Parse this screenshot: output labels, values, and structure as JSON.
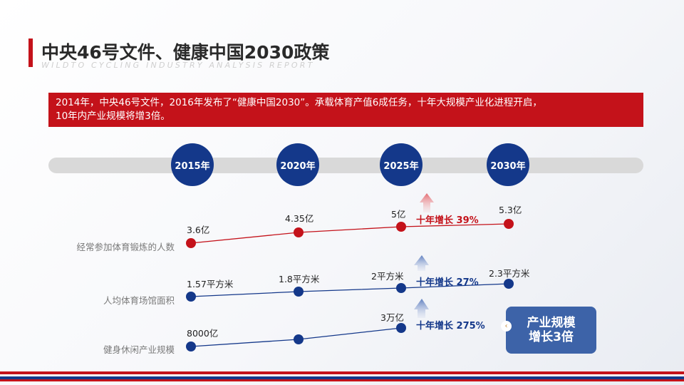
{
  "header": {
    "title": "中央46号文件、健康中国2030政策",
    "subtitle": "WILDTO CYCLING INDUSTRY ANALYSIS REPORT"
  },
  "banner": {
    "line1": "2014年，中央46号文件，2016年发布了“健康中国2030”。承载体育产值6成任务，十年大规模产业化进程开启，",
    "line2": "10年内产业规模将增3倍。"
  },
  "timeline": {
    "years": [
      "2015年",
      "2020年",
      "2025年",
      "2030年"
    ]
  },
  "metrics": [
    {
      "label": "经常参加体育锻炼的人数",
      "values": [
        "3.6亿",
        "4.35亿",
        "5亿",
        "5.3亿"
      ],
      "growth": "十年增长  39%",
      "color": "#c4121a"
    },
    {
      "label": "人均体育场馆面积",
      "values": [
        "1.57平方米",
        "1.8平方米",
        "2平方米",
        "2.3平方米"
      ],
      "growth": "十年增长  27%",
      "color": "#14388a"
    },
    {
      "label": "健身休闲产业规模",
      "values": [
        "8000亿",
        "",
        "3万亿",
        ""
      ],
      "growth": "十年增长  275%",
      "color": "#14388a"
    }
  ],
  "callout": {
    "line1": "产业规模",
    "line2": "增长3倍",
    "marker": "‹"
  }
}
